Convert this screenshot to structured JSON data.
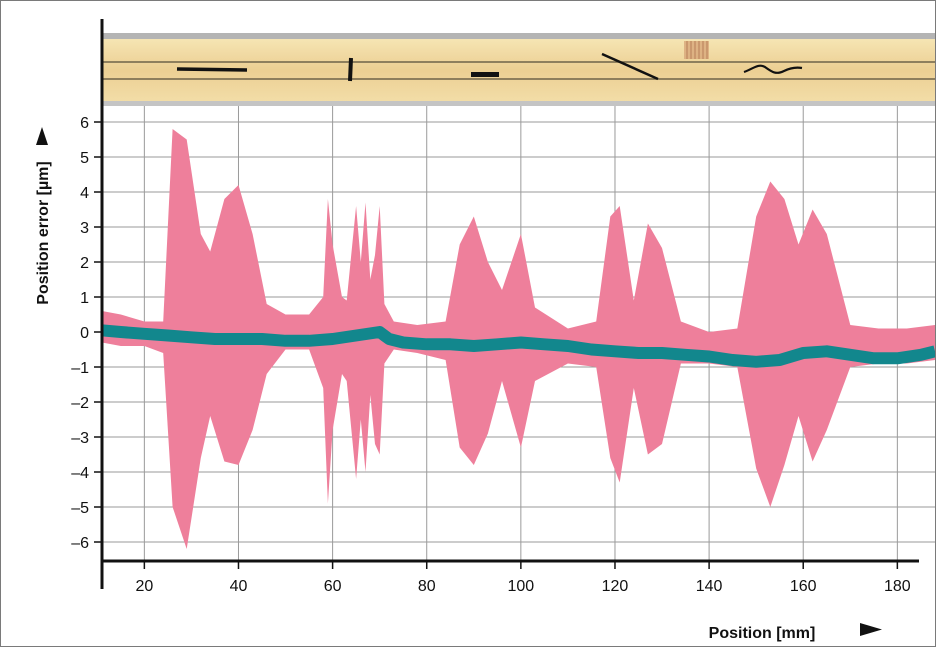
{
  "chart_data": {
    "type": "area",
    "xlabel": "Position [mm]",
    "ylabel": "Position error [µm]",
    "xlim": [
      11,
      188
    ],
    "ylim": [
      -6.6,
      6.3
    ],
    "x_ticks": [
      20,
      40,
      60,
      80,
      100,
      120,
      140,
      160,
      180
    ],
    "y_ticks": [
      6,
      5,
      4,
      3,
      2,
      1,
      0,
      -1,
      -2,
      -3,
      -4,
      -5,
      -6
    ],
    "y_tick_labels": [
      "6",
      "5",
      "4",
      "3",
      "2",
      "1",
      "0",
      "–1",
      "–2",
      "–3",
      "–4",
      "–5",
      "–6"
    ],
    "grid": true,
    "scale_strip": {
      "description_marks": [
        "horizontal scratch",
        "vertical scratch",
        "short thick line",
        "diagonal scratch",
        "wavy scratch",
        "contamination patch"
      ]
    },
    "series": [
      {
        "role": "error envelope",
        "color": "#ee7f9b",
        "x": [
          11,
          15,
          20,
          24,
          26,
          29,
          32,
          34,
          37,
          40,
          43,
          46,
          50,
          55,
          58,
          59,
          60,
          62,
          63,
          65,
          66,
          67,
          68,
          69,
          70,
          71,
          73,
          78,
          84,
          87,
          90,
          93,
          96,
          100,
          103,
          110,
          116,
          119,
          121,
          124,
          127,
          130,
          134,
          140,
          146,
          150,
          153,
          156,
          159,
          162,
          165,
          170,
          176,
          182,
          188
        ],
        "upper": [
          0.6,
          0.5,
          0.3,
          0.3,
          5.8,
          5.5,
          2.8,
          2.3,
          3.8,
          4.2,
          2.8,
          0.8,
          0.5,
          0.5,
          1.0,
          3.8,
          2.5,
          1.0,
          0.9,
          3.6,
          2.0,
          3.7,
          1.5,
          2.2,
          3.6,
          0.8,
          0.3,
          0.2,
          0.3,
          2.5,
          3.3,
          2.0,
          1.2,
          2.8,
          0.7,
          0.1,
          0.3,
          3.3,
          3.6,
          0.9,
          3.1,
          2.4,
          0.3,
          0.0,
          0.1,
          3.3,
          4.3,
          3.8,
          2.5,
          3.5,
          2.8,
          0.2,
          0.1,
          0.1,
          0.2
        ],
        "lower": [
          -0.3,
          -0.4,
          -0.4,
          -0.6,
          -5.0,
          -6.2,
          -3.6,
          -2.4,
          -3.7,
          -3.8,
          -2.8,
          -1.2,
          -0.5,
          -0.5,
          -1.6,
          -4.9,
          -2.8,
          -1.2,
          -1.4,
          -4.2,
          -2.5,
          -4.0,
          -1.8,
          -3.2,
          -3.5,
          -0.9,
          -0.5,
          -0.6,
          -0.8,
          -3.3,
          -3.8,
          -2.9,
          -1.4,
          -3.3,
          -1.4,
          -0.9,
          -1.0,
          -3.6,
          -4.3,
          -1.6,
          -3.5,
          -3.2,
          -0.9,
          -0.9,
          -1.0,
          -3.9,
          -5.0,
          -3.8,
          -2.4,
          -3.7,
          -2.8,
          -1.0,
          -0.9,
          -0.9,
          -0.8
        ]
      },
      {
        "role": "mean error",
        "color": "#12878d",
        "x": [
          11,
          15,
          20,
          25,
          30,
          35,
          40,
          45,
          50,
          55,
          60,
          65,
          70,
          72,
          75,
          80,
          85,
          90,
          95,
          100,
          105,
          110,
          115,
          120,
          125,
          130,
          135,
          140,
          145,
          150,
          155,
          160,
          165,
          170,
          175,
          180,
          185,
          188
        ],
        "y": [
          0.05,
          0.0,
          -0.05,
          -0.1,
          -0.15,
          -0.2,
          -0.2,
          -0.2,
          -0.25,
          -0.25,
          -0.2,
          -0.1,
          0.0,
          -0.2,
          -0.3,
          -0.35,
          -0.35,
          -0.4,
          -0.35,
          -0.3,
          -0.35,
          -0.4,
          -0.5,
          -0.55,
          -0.6,
          -0.6,
          -0.65,
          -0.7,
          -0.8,
          -0.85,
          -0.8,
          -0.6,
          -0.55,
          -0.65,
          -0.75,
          -0.75,
          -0.65,
          -0.55
        ]
      }
    ]
  }
}
